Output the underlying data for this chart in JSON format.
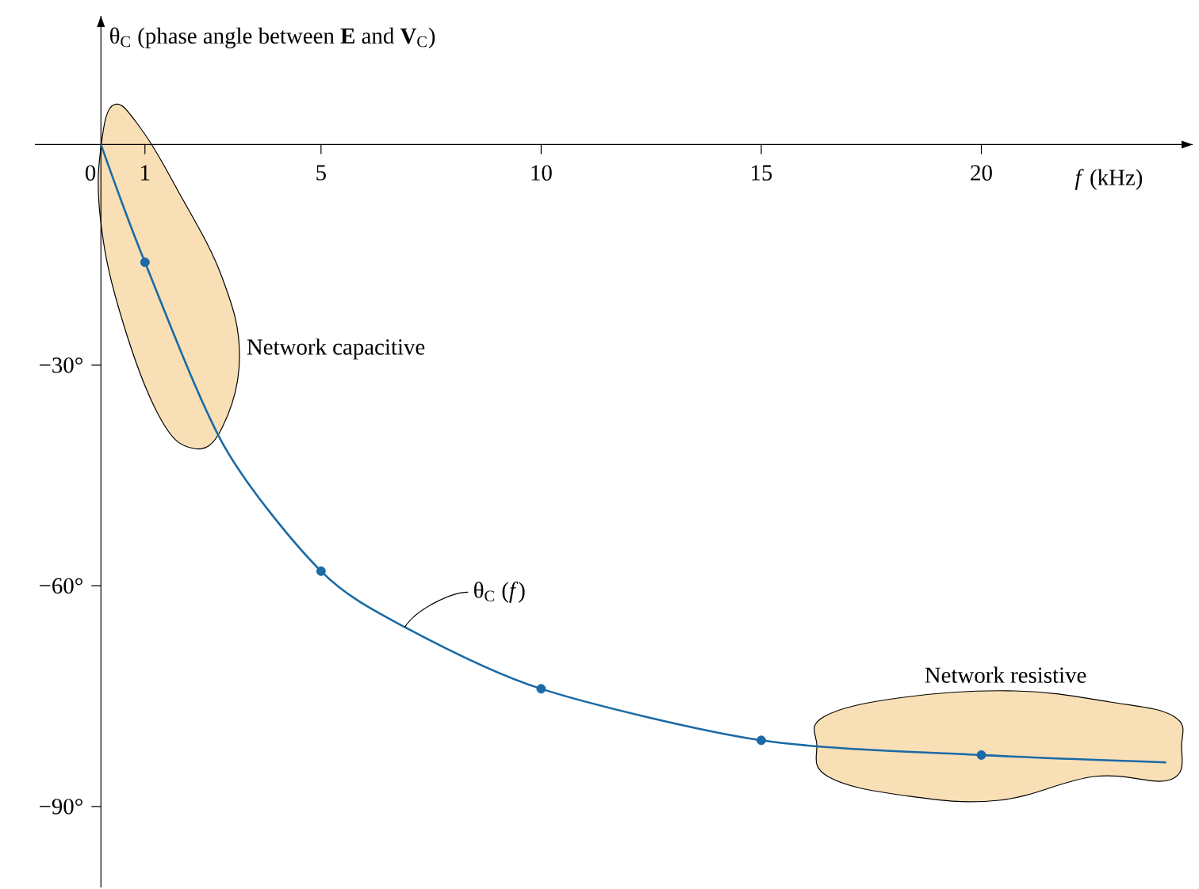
{
  "chart_data": {
    "type": "line",
    "xlabel": "*f* (kHz)",
    "ylabel": "θ$_{C}$ (phase angle between **E** and **V**$_{C}$)",
    "xlim": [
      -1.5,
      24.8
    ],
    "ylim": [
      -101,
      17.5
    ],
    "xticks": [
      0,
      1,
      5,
      10,
      15,
      20
    ],
    "yticks": [
      {
        "value": -30,
        "label": "−30°"
      },
      {
        "value": -60,
        "label": "−60°"
      },
      {
        "value": -90,
        "label": "−90°"
      }
    ],
    "marker": "circle",
    "grid": false,
    "series": [
      {
        "marker": "none",
        "color": "#1a6aa6",
        "x": [
          0,
          1,
          2.8,
          5,
          6.9,
          10,
          15,
          20,
          24.2
        ],
        "values": [
          0,
          -16,
          -41,
          -58,
          -65.6,
          -74,
          -81,
          -83,
          -84
        ]
      },
      {
        "type": "scatter",
        "color": "#1a6aa6",
        "x": [
          1,
          5,
          10,
          15,
          20
        ],
        "values": [
          -16,
          -58,
          -74,
          -81,
          -83
        ]
      }
    ],
    "annotations": [
      "Network capacitive",
      "Network resistive",
      {
        "text": "θ$_{C}$ (*f*)",
        "x": 6.9,
        "y": -65.6
      }
    ]
  }
}
